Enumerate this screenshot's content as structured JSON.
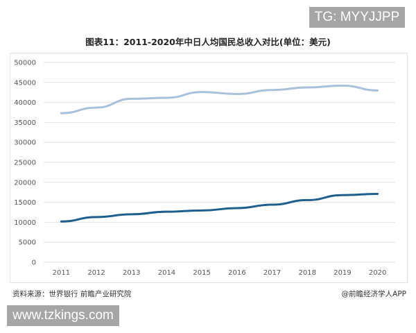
{
  "watermark_top": "TG: MYYJJPP",
  "watermark_bottom": "www.tzkings.com",
  "source": "资料来源：世界银行 前瞻产业研究院",
  "credit": "@前瞻经济学人APP",
  "chart_data": {
    "type": "line",
    "title": "图表11：2011-2020年中日人均国民总收入对比(单位：美元)",
    "xlabel": "",
    "ylabel": "",
    "categories": [
      "2011",
      "2012",
      "2013",
      "2014",
      "2015",
      "2016",
      "2017",
      "2018",
      "2019",
      "2020"
    ],
    "ylim": [
      0,
      50000
    ],
    "yticks": [
      "0",
      "5000",
      "10000",
      "15000",
      "20000",
      "25000",
      "30000",
      "35000",
      "40000",
      "45000",
      "50000"
    ],
    "grid": true,
    "legend": "none",
    "series": [
      {
        "values": [
          37300,
          38700,
          40900,
          41150,
          42600,
          42100,
          43100,
          43750,
          44200,
          43000
        ],
        "color": "#a9c1dc"
      },
      {
        "values": [
          10200,
          11300,
          12000,
          12650,
          12950,
          13550,
          14400,
          15550,
          16800,
          17100
        ],
        "color": "#1f5f8e"
      }
    ]
  }
}
